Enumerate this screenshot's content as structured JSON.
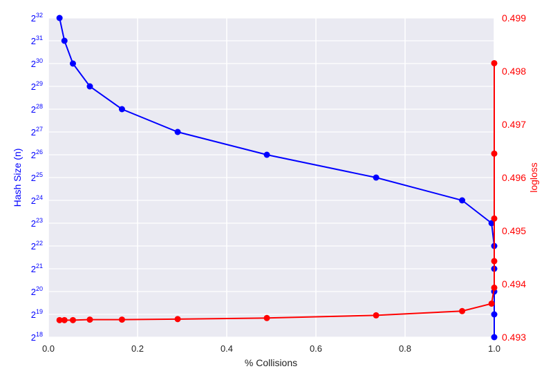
{
  "chart_data": {
    "type": "line",
    "title": "",
    "xlabel": "% Collisions",
    "ylabel_left": "Hash Size (n)",
    "ylabel_right": "logloss",
    "xlim": [
      0.0,
      1.0
    ],
    "x_ticks": [
      {
        "value": 0.0,
        "label": "0.0"
      },
      {
        "value": 0.2,
        "label": "0.2"
      },
      {
        "value": 0.4,
        "label": "0.4"
      },
      {
        "value": 0.6,
        "label": "0.6"
      },
      {
        "value": 0.8,
        "label": "0.8"
      },
      {
        "value": 1.0,
        "label": "1.0"
      }
    ],
    "left_axis": {
      "scale": "log2",
      "ylim_exponent": [
        18,
        32
      ],
      "tick_base": "2",
      "tick_exponents": [
        "18",
        "19",
        "20",
        "21",
        "22",
        "23",
        "24",
        "25",
        "26",
        "27",
        "28",
        "29",
        "30",
        "31",
        "32"
      ]
    },
    "right_axis": {
      "ylim": [
        0.493,
        0.499
      ],
      "tick_labels": [
        "0.493",
        "0.494",
        "0.495",
        "0.496",
        "0.497",
        "0.498",
        "0.499"
      ]
    },
    "grid": true,
    "background": "#eaeaf2",
    "series": [
      {
        "axis": "left",
        "color": "#0000ff",
        "points": [
          {
            "x": 0.025,
            "log2_hash_size": 32
          },
          {
            "x": 0.036,
            "log2_hash_size": 31
          },
          {
            "x": 0.055,
            "log2_hash_size": 30
          },
          {
            "x": 0.093,
            "log2_hash_size": 29
          },
          {
            "x": 0.165,
            "log2_hash_size": 28
          },
          {
            "x": 0.29,
            "log2_hash_size": 27
          },
          {
            "x": 0.49,
            "log2_hash_size": 26
          },
          {
            "x": 0.735,
            "log2_hash_size": 25
          },
          {
            "x": 0.928,
            "log2_hash_size": 24
          },
          {
            "x": 0.994,
            "log2_hash_size": 23
          },
          {
            "x": 1.0,
            "log2_hash_size": 22
          },
          {
            "x": 1.0,
            "log2_hash_size": 21
          },
          {
            "x": 1.0,
            "log2_hash_size": 20
          },
          {
            "x": 1.0,
            "log2_hash_size": 19
          },
          {
            "x": 1.0,
            "log2_hash_size": 18
          }
        ]
      },
      {
        "axis": "right",
        "color": "#ff0000",
        "points": [
          {
            "x": 1.0,
            "logloss": 0.49815
          },
          {
            "x": 1.0,
            "logloss": 0.49645
          },
          {
            "x": 1.0,
            "logloss": 0.49523
          },
          {
            "x": 1.0,
            "logloss": 0.49443
          },
          {
            "x": 1.0,
            "logloss": 0.49393
          },
          {
            "x": 0.994,
            "logloss": 0.49363
          },
          {
            "x": 0.928,
            "logloss": 0.49349
          },
          {
            "x": 0.735,
            "logloss": 0.49341
          },
          {
            "x": 0.49,
            "logloss": 0.49336
          },
          {
            "x": 0.29,
            "logloss": 0.49334
          },
          {
            "x": 0.165,
            "logloss": 0.49333
          },
          {
            "x": 0.093,
            "logloss": 0.49333
          },
          {
            "x": 0.055,
            "logloss": 0.49332
          },
          {
            "x": 0.036,
            "logloss": 0.49332
          },
          {
            "x": 0.025,
            "logloss": 0.49332
          }
        ]
      }
    ]
  }
}
